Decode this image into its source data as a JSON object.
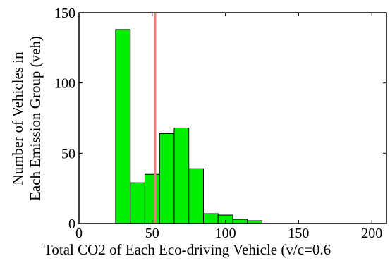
{
  "chart_data": {
    "type": "bar",
    "bin_edges": [
      25,
      35,
      45,
      55,
      65,
      75,
      85,
      95,
      105,
      115,
      125
    ],
    "values": [
      138,
      29,
      35,
      64,
      68,
      39,
      7,
      6,
      3,
      2
    ],
    "xlim": [
      0,
      210
    ],
    "ylim": [
      0,
      150
    ],
    "xticks": [
      0,
      50,
      100,
      150,
      200
    ],
    "yticks": [
      0,
      50,
      100,
      150
    ],
    "xlabel": "Total CO2 of Each Eco-driving Vehicle (v/c=0.6",
    "ylabel_lines": [
      "Number of Vehicles in",
      "Each Emission Group (veh)"
    ],
    "reference_line_x": 52,
    "colors": {
      "bar_fill": "#00ee00",
      "bar_stroke": "#000000",
      "reference_line": "#f07c7c",
      "axes": "#000000"
    },
    "grid": false
  }
}
